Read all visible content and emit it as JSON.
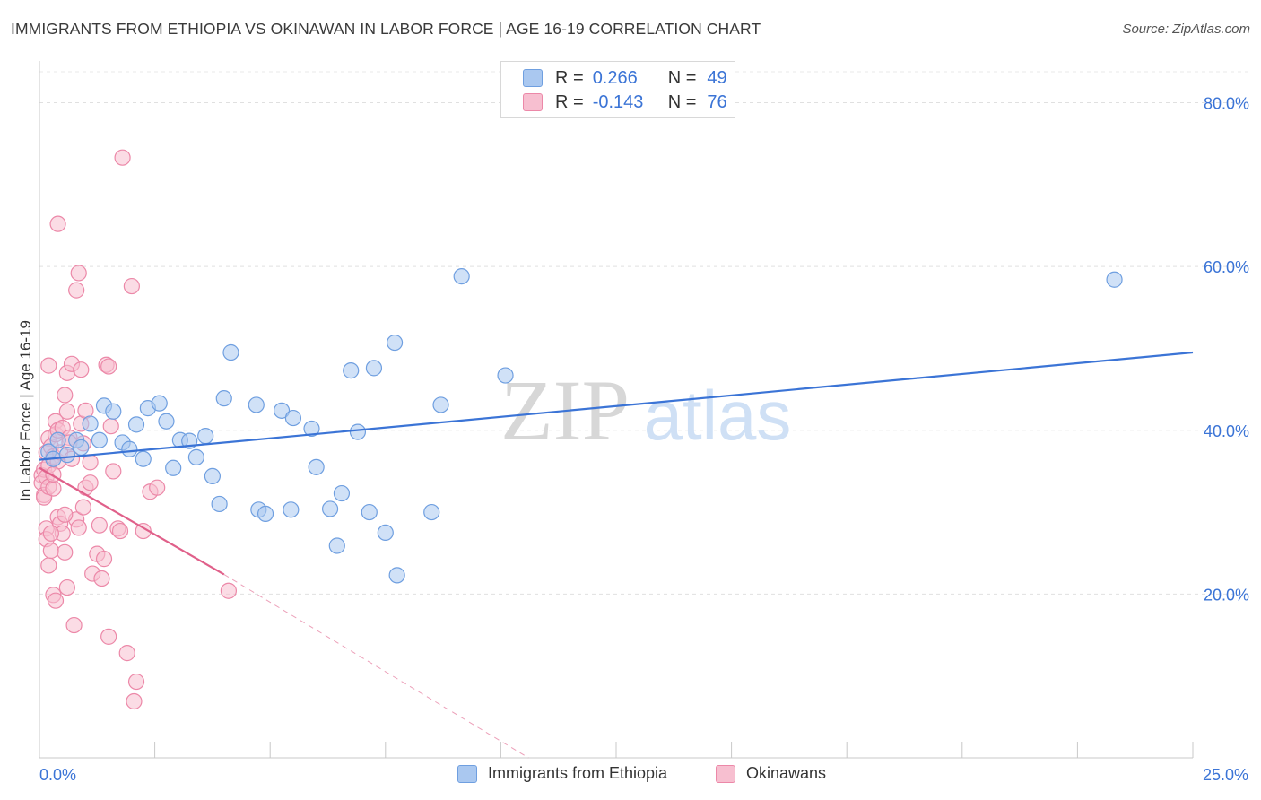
{
  "title": "IMMIGRANTS FROM ETHIOPIA VS OKINAWAN IN LABOR FORCE | AGE 16-19 CORRELATION CHART",
  "source": "Source: ZipAtlas.com",
  "watermark": {
    "zip": "ZIP",
    "atlas": "atlas"
  },
  "legend": {
    "rows": [
      {
        "r_label": "R =",
        "r_value": "0.266",
        "n_label": "N =",
        "n_value": "49",
        "color": "#aac8f0",
        "border": "#6f9fe0"
      },
      {
        "r_label": "R =",
        "r_value": "-0.143",
        "n_label": "N =",
        "n_value": "76",
        "color": "#f7bfd0",
        "border": "#ec88a8"
      }
    ]
  },
  "bottom_legend": [
    {
      "label": "Immigrants from Ethiopia",
      "color": "#aac8f0",
      "border": "#6f9fe0"
    },
    {
      "label": "Okinawans",
      "color": "#f7bfd0",
      "border": "#ec88a8"
    }
  ],
  "chart_data": {
    "type": "scatter",
    "title": "IMMIGRANTS FROM ETHIOPIA VS OKINAWAN IN LABOR FORCE | AGE 16-19 CORRELATION CHART",
    "xlabel": "",
    "ylabel": "In Labor Force | Age 16-19",
    "xlim": [
      0,
      25
    ],
    "ylim": [
      0,
      84
    ],
    "x_tick_labels": [
      "0.0%",
      "25.0%"
    ],
    "y_ticks": [
      20,
      40,
      60,
      80
    ],
    "y_tick_labels": [
      "20.0%",
      "40.0%",
      "60.0%",
      "80.0%"
    ],
    "grid": true,
    "colors": {
      "ethiopia_fill": "#aac8f0",
      "ethiopia_stroke": "#6f9fe0",
      "ethiopia_line": "#3b74d6",
      "okinawan_fill": "#f7bfd0",
      "okinawan_stroke": "#ec88a8",
      "okinawan_line": "#e0608a",
      "axis_label": "#3b74d6"
    },
    "series": [
      {
        "name": "Immigrants from Ethiopia",
        "trend": {
          "x0": 0.0,
          "y0": 36.4,
          "x1": 25.0,
          "y1": 49.5
        },
        "points": [
          [
            0.2,
            37.4
          ],
          [
            0.3,
            36.5
          ],
          [
            0.4,
            38.8
          ],
          [
            0.8,
            38.8
          ],
          [
            1.1,
            40.8
          ],
          [
            1.3,
            38.8
          ],
          [
            1.4,
            43.0
          ],
          [
            1.6,
            42.3
          ],
          [
            1.8,
            38.5
          ],
          [
            1.95,
            37.7
          ],
          [
            2.1,
            40.7
          ],
          [
            2.25,
            36.5
          ],
          [
            2.35,
            42.7
          ],
          [
            2.6,
            43.3
          ],
          [
            2.75,
            41.1
          ],
          [
            2.9,
            35.4
          ],
          [
            3.05,
            38.8
          ],
          [
            3.25,
            38.7
          ],
          [
            3.4,
            36.7
          ],
          [
            3.6,
            39.3
          ],
          [
            3.75,
            34.4
          ],
          [
            3.9,
            31.0
          ],
          [
            4.0,
            43.9
          ],
          [
            4.15,
            49.5
          ],
          [
            4.7,
            43.1
          ],
          [
            4.75,
            30.3
          ],
          [
            4.9,
            29.8
          ],
          [
            5.25,
            42.4
          ],
          [
            5.45,
            30.3
          ],
          [
            5.5,
            41.5
          ],
          [
            5.9,
            40.2
          ],
          [
            6.0,
            35.5
          ],
          [
            6.3,
            30.4
          ],
          [
            6.45,
            25.9
          ],
          [
            6.55,
            32.3
          ],
          [
            6.75,
            47.3
          ],
          [
            6.9,
            39.8
          ],
          [
            7.15,
            30.0
          ],
          [
            7.25,
            47.6
          ],
          [
            7.5,
            27.5
          ],
          [
            7.7,
            50.7
          ],
          [
            7.75,
            22.3
          ],
          [
            8.5,
            30.0
          ],
          [
            8.7,
            43.1
          ],
          [
            9.15,
            58.8
          ],
          [
            10.1,
            46.7
          ],
          [
            23.3,
            58.4
          ],
          [
            0.6,
            37.0
          ],
          [
            0.9,
            37.9
          ]
        ]
      },
      {
        "name": "Okinawans",
        "trend": {
          "x0": 0.0,
          "y0": 35.4,
          "x1": 4.0,
          "y1": 22.4,
          "dash_x1": 10.6,
          "dash_y1": 0.0
        },
        "points": [
          [
            0.05,
            34.5
          ],
          [
            0.05,
            33.6
          ],
          [
            0.1,
            32.1
          ],
          [
            0.1,
            31.8
          ],
          [
            0.1,
            35.2
          ],
          [
            0.15,
            37.3
          ],
          [
            0.15,
            34.3
          ],
          [
            0.15,
            28.0
          ],
          [
            0.15,
            26.7
          ],
          [
            0.2,
            47.9
          ],
          [
            0.2,
            39.0
          ],
          [
            0.2,
            35.7
          ],
          [
            0.2,
            33.1
          ],
          [
            0.2,
            23.5
          ],
          [
            0.25,
            38.0
          ],
          [
            0.25,
            25.3
          ],
          [
            0.3,
            36.8
          ],
          [
            0.3,
            32.9
          ],
          [
            0.3,
            19.9
          ],
          [
            0.35,
            41.1
          ],
          [
            0.35,
            39.5
          ],
          [
            0.35,
            19.2
          ],
          [
            0.4,
            65.2
          ],
          [
            0.4,
            40.0
          ],
          [
            0.4,
            36.2
          ],
          [
            0.4,
            29.4
          ],
          [
            0.45,
            37.3
          ],
          [
            0.45,
            28.6
          ],
          [
            0.5,
            40.3
          ],
          [
            0.5,
            27.4
          ],
          [
            0.55,
            44.3
          ],
          [
            0.55,
            25.1
          ],
          [
            0.6,
            20.8
          ],
          [
            0.6,
            47.0
          ],
          [
            0.6,
            42.3
          ],
          [
            0.65,
            39.1
          ],
          [
            0.7,
            48.1
          ],
          [
            0.7,
            36.5
          ],
          [
            0.75,
            16.2
          ],
          [
            0.8,
            57.1
          ],
          [
            0.8,
            29.1
          ],
          [
            0.85,
            59.2
          ],
          [
            0.85,
            28.1
          ],
          [
            0.9,
            47.4
          ],
          [
            0.9,
            40.8
          ],
          [
            0.95,
            38.4
          ],
          [
            0.95,
            30.6
          ],
          [
            1.0,
            42.4
          ],
          [
            1.0,
            33.0
          ],
          [
            1.1,
            36.1
          ],
          [
            1.1,
            33.6
          ],
          [
            1.15,
            22.5
          ],
          [
            1.25,
            24.9
          ],
          [
            1.3,
            28.4
          ],
          [
            1.35,
            21.9
          ],
          [
            1.4,
            24.3
          ],
          [
            1.45,
            48.0
          ],
          [
            1.5,
            47.8
          ],
          [
            1.5,
            14.8
          ],
          [
            1.55,
            40.5
          ],
          [
            1.6,
            35.0
          ],
          [
            1.7,
            28.0
          ],
          [
            1.75,
            27.7
          ],
          [
            1.9,
            12.8
          ],
          [
            2.0,
            57.6
          ],
          [
            2.05,
            6.9
          ],
          [
            2.1,
            9.3
          ],
          [
            2.25,
            27.7
          ],
          [
            2.4,
            32.5
          ],
          [
            2.55,
            33.0
          ],
          [
            1.8,
            73.3
          ],
          [
            4.1,
            20.4
          ],
          [
            0.25,
            27.4
          ],
          [
            0.3,
            34.6
          ],
          [
            0.55,
            29.7
          ],
          [
            0.65,
            38.5
          ]
        ]
      }
    ]
  }
}
